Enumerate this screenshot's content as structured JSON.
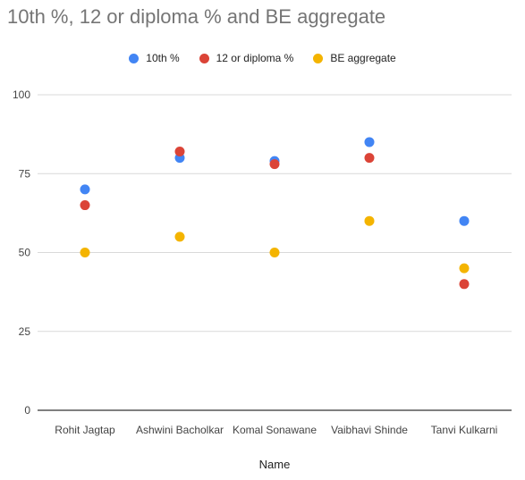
{
  "chart_data": {
    "type": "scatter",
    "title": "10th %, 12 or diploma % and BE aggregate",
    "xlabel": "Name",
    "ylabel": "",
    "categories": [
      "Rohit Jagtap",
      "Ashwini Bacholkar",
      "Komal Sonawane",
      "Vaibhavi Shinde",
      "Tanvi Kulkarni"
    ],
    "ylim": [
      0,
      100
    ],
    "yticks": [
      0,
      25,
      50,
      75,
      100
    ],
    "grid": true,
    "legend_position": "top",
    "series": [
      {
        "name": "10th %",
        "color": "#4285F4",
        "values": [
          70,
          80,
          79,
          85,
          60
        ]
      },
      {
        "name": "12 or diploma %",
        "color": "#DB4437",
        "values": [
          65,
          82,
          78,
          80,
          40
        ]
      },
      {
        "name": "BE aggregate",
        "color": "#F4B400",
        "values": [
          50,
          55,
          50,
          60,
          45
        ]
      }
    ]
  }
}
